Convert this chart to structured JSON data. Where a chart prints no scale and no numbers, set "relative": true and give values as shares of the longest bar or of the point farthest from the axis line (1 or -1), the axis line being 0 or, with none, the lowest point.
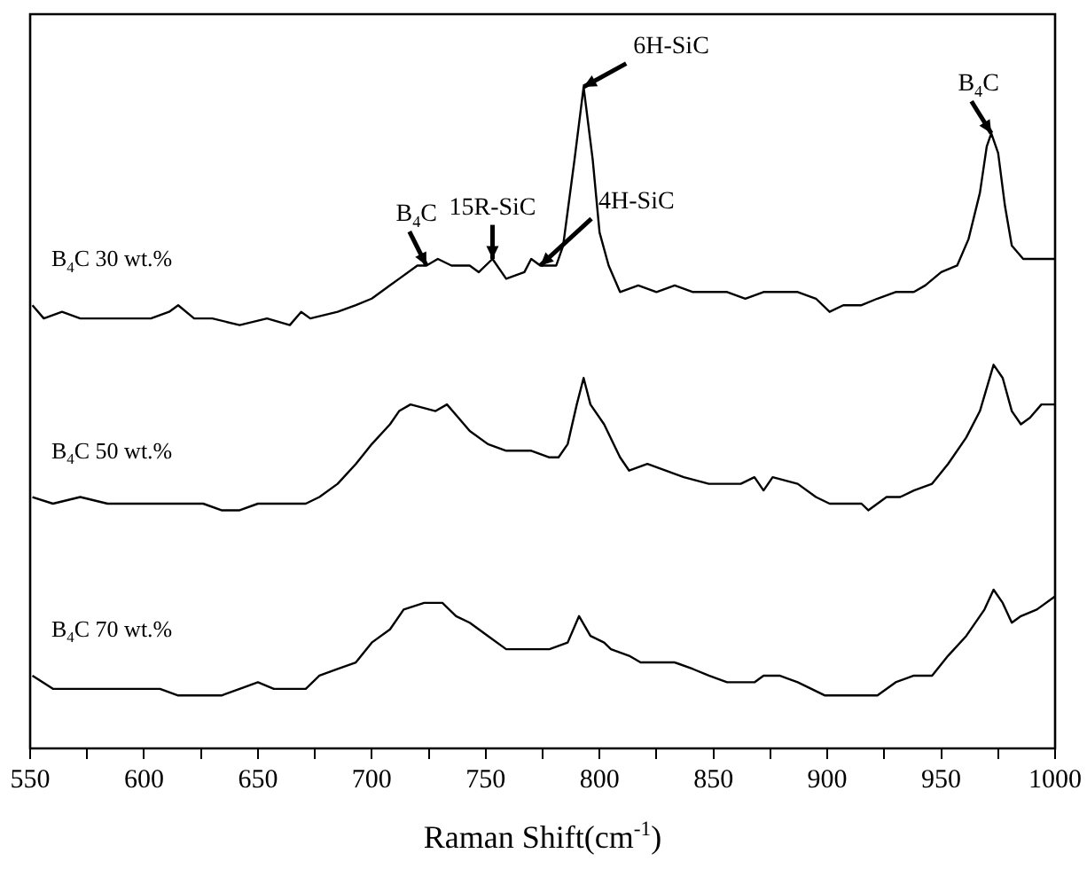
{
  "chart_data": {
    "type": "line",
    "relative": true,
    "xlabel": "Raman Shift(cm$^{-1}$)",
    "xlim": [
      550,
      1000
    ],
    "xticks": [
      550,
      {
        "value": 575,
        "label": null
      },
      600,
      {
        "value": 625,
        "label": null
      },
      650,
      {
        "value": 675,
        "label": null
      },
      700,
      {
        "value": 725,
        "label": null
      },
      750,
      {
        "value": 775,
        "label": null
      },
      800,
      {
        "value": 825,
        "label": null
      },
      850,
      {
        "value": 875,
        "label": null
      },
      900,
      {
        "value": 925,
        "label": null
      },
      950,
      {
        "value": 975,
        "label": null
      },
      1000
    ],
    "grid": false,
    "legend": false,
    "marker": "none",
    "line_style": "solid",
    "annotations": [
      {
        "text": "B$_{4}$C",
        "x": 724,
        "y": 0.73
      },
      {
        "text": "15R-SiC",
        "x": 753,
        "y": 0.74
      },
      {
        "text": "4H-SiC",
        "x": 774,
        "y": 0.73
      },
      {
        "text": "6H-SiC",
        "x": 793,
        "y": 1
      },
      {
        "text": "B$_{4}$C",
        "x": 972,
        "y": 0.93
      }
    ],
    "series": [
      {
        "name": "B$_{4}$C 30 wt.%",
        "color": "#000000",
        "x": [
          551,
          556,
          564,
          572,
          580,
          587,
          595,
          603,
          611,
          615,
          622,
          630,
          642,
          654,
          664,
          669,
          673,
          685,
          693,
          700,
          708,
          712,
          720,
          724,
          729,
          735,
          743,
          747,
          753,
          759,
          767,
          770,
          774,
          778,
          781,
          784,
          789,
          793,
          797,
          800,
          804,
          809,
          817,
          825,
          833,
          841,
          848,
          856,
          864,
          872,
          879,
          887,
          895,
          901,
          907,
          915,
          922,
          930,
          938,
          943,
          950,
          957,
          962,
          967,
          970,
          972,
          975,
          978,
          981,
          986,
          992,
          1000
        ],
        "values": [
          0.67,
          0.65,
          0.66,
          0.65,
          0.65,
          0.65,
          0.65,
          0.65,
          0.66,
          0.67,
          0.65,
          0.65,
          0.64,
          0.65,
          0.64,
          0.66,
          0.65,
          0.66,
          0.67,
          0.68,
          0.7,
          0.71,
          0.73,
          0.73,
          0.74,
          0.73,
          0.73,
          0.72,
          0.74,
          0.71,
          0.72,
          0.74,
          0.73,
          0.73,
          0.73,
          0.76,
          0.89,
          1,
          0.89,
          0.78,
          0.73,
          0.69,
          0.7,
          0.69,
          0.7,
          0.69,
          0.69,
          0.69,
          0.68,
          0.69,
          0.69,
          0.69,
          0.68,
          0.66,
          0.67,
          0.67,
          0.68,
          0.69,
          0.69,
          0.7,
          0.72,
          0.73,
          0.77,
          0.84,
          0.91,
          0.93,
          0.9,
          0.82,
          0.76,
          0.74,
          0.74,
          0.74
        ]
      },
      {
        "name": "B$_{4}$C 50 wt.%",
        "color": "#000000",
        "x": [
          551,
          560,
          572,
          584,
          595,
          607,
          615,
          626,
          634,
          642,
          650,
          661,
          671,
          677,
          685,
          693,
          700,
          708,
          712,
          717,
          728,
          733,
          738,
          743,
          751,
          759,
          767,
          770,
          778,
          782,
          786,
          790,
          793,
          796,
          802,
          809,
          813,
          821,
          829,
          837,
          848,
          856,
          862,
          868,
          872,
          876,
          887,
          895,
          901,
          907,
          915,
          918,
          926,
          932,
          938,
          946,
          953,
          961,
          967,
          973,
          977,
          981,
          985,
          989,
          994,
          1000
        ],
        "values": [
          0.38,
          0.37,
          0.38,
          0.37,
          0.37,
          0.37,
          0.37,
          0.37,
          0.36,
          0.36,
          0.37,
          0.37,
          0.37,
          0.38,
          0.4,
          0.43,
          0.46,
          0.49,
          0.51,
          0.52,
          0.51,
          0.52,
          0.5,
          0.48,
          0.46,
          0.45,
          0.45,
          0.45,
          0.44,
          0.44,
          0.46,
          0.52,
          0.56,
          0.52,
          0.49,
          0.44,
          0.42,
          0.43,
          0.42,
          0.41,
          0.4,
          0.4,
          0.4,
          0.41,
          0.39,
          0.41,
          0.4,
          0.38,
          0.37,
          0.37,
          0.37,
          0.36,
          0.38,
          0.38,
          0.39,
          0.4,
          0.43,
          0.47,
          0.51,
          0.58,
          0.56,
          0.51,
          0.49,
          0.5,
          0.52,
          0.52
        ]
      },
      {
        "name": "B$_{4}$C 70 wt.%",
        "color": "#000000",
        "x": [
          551,
          560,
          572,
          584,
          595,
          607,
          615,
          626,
          634,
          642,
          650,
          657,
          665,
          671,
          677,
          685,
          693,
          700,
          708,
          714,
          723,
          731,
          737,
          743,
          751,
          759,
          767,
          770,
          778,
          786,
          791,
          796,
          802,
          805,
          813,
          818,
          825,
          833,
          841,
          848,
          856,
          864,
          868,
          872,
          879,
          887,
          899,
          907,
          915,
          922,
          930,
          938,
          946,
          953,
          961,
          969,
          973,
          977,
          981,
          985,
          992,
          1000
        ],
        "values": [
          0.11,
          0.09,
          0.09,
          0.09,
          0.09,
          0.09,
          0.08,
          0.08,
          0.08,
          0.09,
          0.1,
          0.09,
          0.09,
          0.09,
          0.11,
          0.12,
          0.13,
          0.16,
          0.18,
          0.21,
          0.22,
          0.22,
          0.2,
          0.19,
          0.17,
          0.15,
          0.15,
          0.15,
          0.15,
          0.16,
          0.2,
          0.17,
          0.16,
          0.15,
          0.14,
          0.13,
          0.13,
          0.13,
          0.12,
          0.11,
          0.1,
          0.1,
          0.1,
          0.11,
          0.11,
          0.1,
          0.08,
          0.08,
          0.08,
          0.08,
          0.1,
          0.11,
          0.11,
          0.14,
          0.17,
          0.21,
          0.24,
          0.22,
          0.19,
          0.2,
          0.21,
          0.23
        ]
      }
    ]
  }
}
